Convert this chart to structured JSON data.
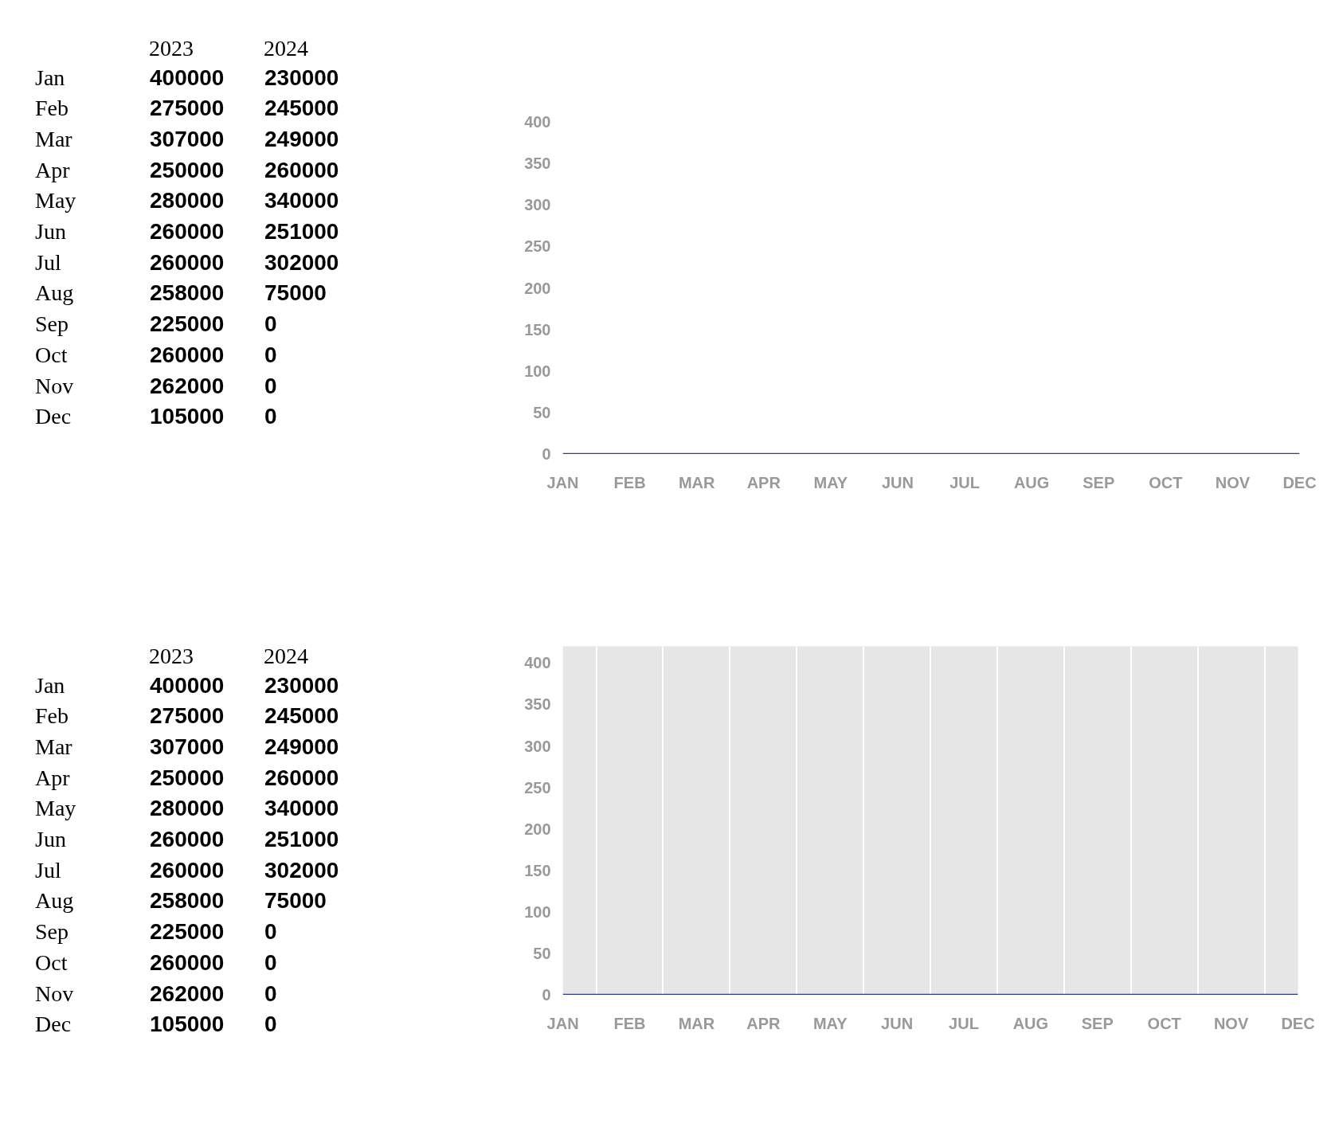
{
  "chart_data": [
    {
      "type": "other",
      "categories": [
        "Jan",
        "Feb",
        "Mar",
        "Apr",
        "May",
        "Jun",
        "Jul",
        "Aug",
        "Sep",
        "Oct",
        "Nov",
        "Dec"
      ],
      "series": [
        {
          "name": "2023",
          "color": "#000000",
          "values": [
            400000,
            275000,
            307000,
            250000,
            280000,
            260000,
            260000,
            258000,
            225000,
            260000,
            262000,
            105000
          ]
        },
        {
          "name": "2024",
          "color": "#000000",
          "values": [
            230000,
            245000,
            249000,
            260000,
            340000,
            251000,
            302000,
            75000,
            0,
            0,
            0,
            0
          ]
        }
      ],
      "data_labels": true
    },
    {
      "type": "line",
      "categories": [
        "JAN",
        "FEB",
        "MAR",
        "APR",
        "MAY",
        "JUN",
        "JUL",
        "AUG",
        "SEP",
        "OCT",
        "NOV",
        "DEC"
      ],
      "values": [
        0,
        0,
        0,
        0,
        0,
        0,
        0,
        0,
        0,
        0,
        0,
        0
      ],
      "color": "#2d3f94",
      "ylim": [
        0,
        400
      ],
      "yticks": [
        0,
        50,
        100,
        150,
        200,
        250,
        300,
        350,
        400
      ],
      "line_style": "solid",
      "marker": "none"
    },
    {
      "type": "other",
      "categories": [
        "Jan",
        "Feb",
        "Mar",
        "Apr",
        "May",
        "Jun",
        "Jul",
        "Aug",
        "Sep",
        "Oct",
        "Nov",
        "Dec"
      ],
      "series": [
        {
          "name": "2023",
          "color": "#000000",
          "values": [
            400000,
            275000,
            307000,
            250000,
            280000,
            260000,
            260000,
            258000,
            225000,
            260000,
            262000,
            105000
          ]
        },
        {
          "name": "2024",
          "color": "#000000",
          "values": [
            230000,
            245000,
            249000,
            260000,
            340000,
            251000,
            302000,
            75000,
            0,
            0,
            0,
            0
          ]
        }
      ],
      "data_labels": true
    },
    {
      "type": "line",
      "categories": [
        "JAN",
        "FEB",
        "MAR",
        "APR",
        "MAY",
        "JUN",
        "JUL",
        "AUG",
        "SEP",
        "OCT",
        "NOV",
        "DEC"
      ],
      "values": [
        0,
        0,
        0,
        0,
        0,
        0,
        0,
        0,
        0,
        0,
        0,
        0
      ],
      "color": "#2d3f94",
      "ylim": [
        0,
        420
      ],
      "yticks": [
        0,
        50,
        100,
        150,
        200,
        250,
        300,
        350,
        400
      ],
      "grid": "x",
      "line_style": "solid",
      "marker": "none"
    }
  ]
}
